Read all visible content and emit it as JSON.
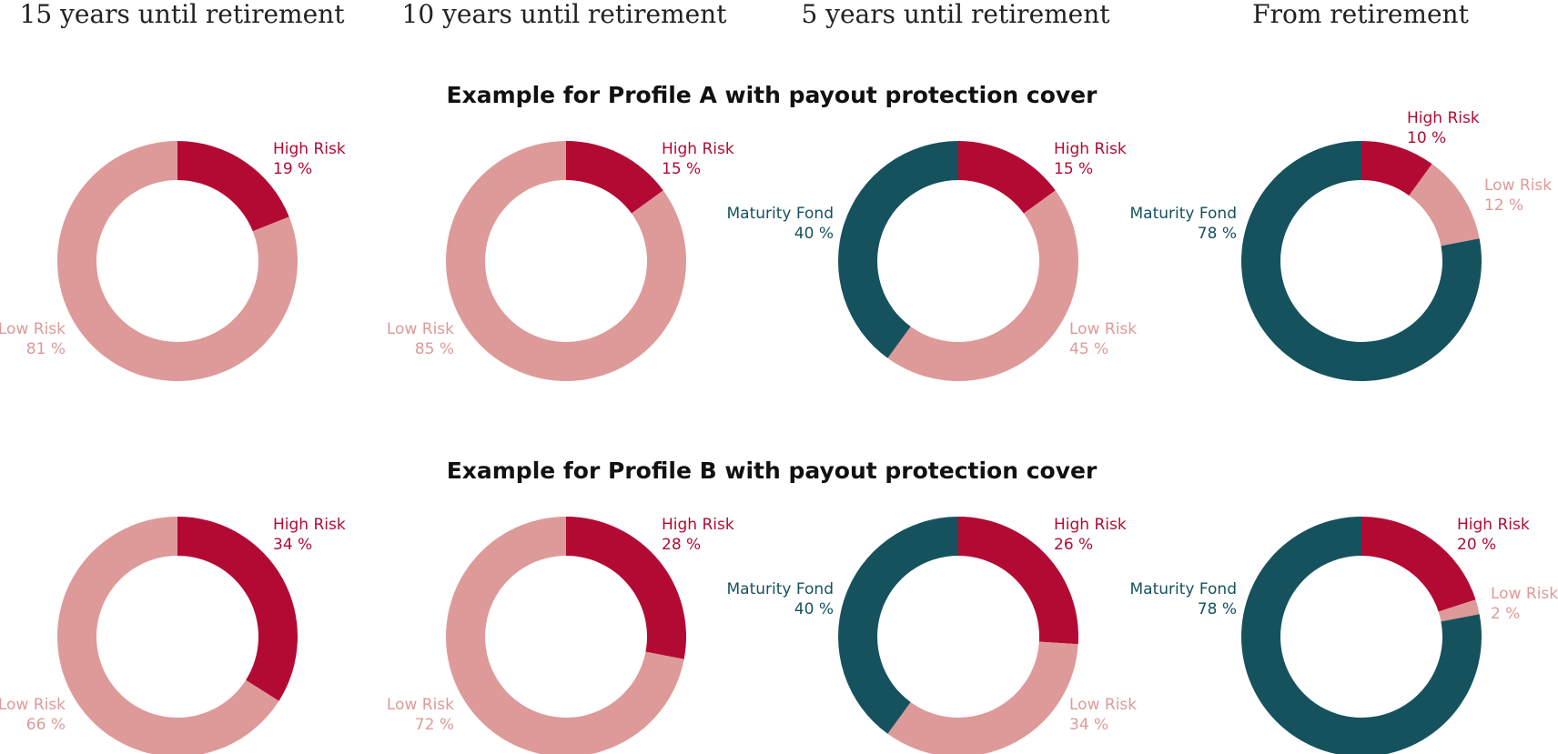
{
  "columns": [
    "15 years until retirement",
    "10 years until retirement",
    "5 years until retirement",
    "From retirement"
  ],
  "chart_data": [
    {
      "type": "donut",
      "title": "Example for Profile A with payout protection cover",
      "categories": [
        "15 years until retirement",
        "10 years until retirement",
        "5 years until retirement",
        "From retirement"
      ],
      "charts": [
        {
          "column": "15 years until retirement",
          "slices": [
            {
              "name": "High Risk",
              "value": 19,
              "label": "19 %",
              "color": "#b30a33"
            },
            {
              "name": "Low Risk",
              "value": 81,
              "label": "81 %",
              "color": "#dd9a98"
            }
          ]
        },
        {
          "column": "10 years until retirement",
          "slices": [
            {
              "name": "High Risk",
              "value": 15,
              "label": "15 %",
              "color": "#b30a33"
            },
            {
              "name": "Low Risk",
              "value": 85,
              "label": "85 %",
              "color": "#dd9a98"
            }
          ]
        },
        {
          "column": "5 years until retirement",
          "slices": [
            {
              "name": "High Risk",
              "value": 15,
              "label": "15 %",
              "color": "#b30a33"
            },
            {
              "name": "Low Risk",
              "value": 45,
              "label": "45 %",
              "color": "#dd9a98"
            },
            {
              "name": "Maturity Fond",
              "value": 40,
              "label": "40 %",
              "color": "#15525e"
            }
          ]
        },
        {
          "column": "From retirement",
          "slices": [
            {
              "name": "High Risk",
              "value": 10,
              "label": "10 %",
              "color": "#b30a33"
            },
            {
              "name": "Low Risk",
              "value": 12,
              "label": "12 %",
              "color": "#dd9a98"
            },
            {
              "name": "Maturity Fond",
              "value": 78,
              "label": "78 %",
              "color": "#15525e"
            }
          ]
        }
      ]
    },
    {
      "type": "donut",
      "title": "Example for Profile B with payout protection cover",
      "categories": [
        "15 years until retirement",
        "10 years until retirement",
        "5 years until retirement",
        "From retirement"
      ],
      "charts": [
        {
          "column": "15 years until retirement",
          "slices": [
            {
              "name": "High Risk",
              "value": 34,
              "label": "34 %",
              "color": "#b30a33"
            },
            {
              "name": "Low Risk",
              "value": 66,
              "label": "66 %",
              "color": "#dd9a98"
            }
          ]
        },
        {
          "column": "10 years until retirement",
          "slices": [
            {
              "name": "High Risk",
              "value": 28,
              "label": "28 %",
              "color": "#b30a33"
            },
            {
              "name": "Low Risk",
              "value": 72,
              "label": "72 %",
              "color": "#dd9a98"
            }
          ]
        },
        {
          "column": "5 years until retirement",
          "slices": [
            {
              "name": "High Risk",
              "value": 26,
              "label": "26 %",
              "color": "#b30a33"
            },
            {
              "name": "Low Risk",
              "value": 34,
              "label": "34 %",
              "color": "#dd9a98"
            },
            {
              "name": "Maturity Fond",
              "value": 40,
              "label": "40 %",
              "color": "#15525e"
            }
          ]
        },
        {
          "column": "From retirement",
          "slices": [
            {
              "name": "High Risk",
              "value": 20,
              "label": "20 %",
              "color": "#b30a33"
            },
            {
              "name": "Low Risk",
              "value": 2,
              "label": "2 %",
              "color": "#dd9a98"
            },
            {
              "name": "Maturity Fond",
              "value": 78,
              "label": "78 %",
              "color": "#15525e"
            }
          ]
        }
      ]
    }
  ]
}
